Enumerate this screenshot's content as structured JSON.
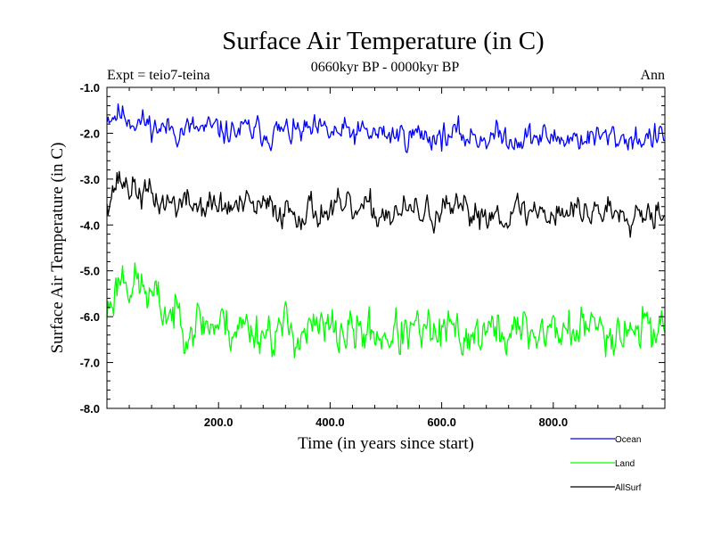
{
  "chart_data": {
    "type": "line",
    "title": "Surface Air Temperature (in C)",
    "subtitle": "0660kyr BP - 0000kyr BP",
    "left_label": "Expt = teio7-teina",
    "right_label": "Ann",
    "xlabel": "Time (in years since start)",
    "ylabel": "Surface Air Temperature (in C)",
    "xlim": [
      0,
      1000
    ],
    "ylim": [
      -8.0,
      -1.0
    ],
    "x_ticks": [
      200,
      400,
      600,
      800
    ],
    "x_tick_labels": [
      "200.0",
      "400.0",
      "600.0",
      "800.0"
    ],
    "y_ticks": [
      -1,
      -2,
      -3,
      -4,
      -5,
      -6,
      -7,
      -8
    ],
    "y_tick_labels": [
      "-1.0",
      "-2.0",
      "-3.0",
      "-4.0",
      "-5.0",
      "-6.0",
      "-7.0",
      "-8.0"
    ],
    "grid": false,
    "legend_position": "bottom-right",
    "sampling_step_years": 2,
    "series": [
      {
        "name": "Ocean",
        "color": "#0000ff",
        "trend": [
          [
            0,
            -1.6
          ],
          [
            20,
            -1.55
          ],
          [
            60,
            -1.75
          ],
          [
            100,
            -1.9
          ],
          [
            200,
            -1.95
          ],
          [
            400,
            -2.0
          ],
          [
            600,
            -2.05
          ],
          [
            800,
            -2.1
          ],
          [
            1000,
            -2.1
          ]
        ],
        "noise_amplitude": 0.13,
        "seed": 11
      },
      {
        "name": "Land",
        "color": "#00ff00",
        "trend": [
          [
            0,
            -5.9
          ],
          [
            25,
            -5.05
          ],
          [
            60,
            -5.35
          ],
          [
            100,
            -5.85
          ],
          [
            150,
            -6.1
          ],
          [
            300,
            -6.3
          ],
          [
            600,
            -6.4
          ],
          [
            800,
            -6.3
          ],
          [
            1000,
            -6.2
          ]
        ],
        "noise_amplitude": 0.22,
        "seed": 23
      },
      {
        "name": "AllSurf",
        "color": "#000000",
        "trend": [
          [
            0,
            -3.4
          ],
          [
            20,
            -3.0
          ],
          [
            60,
            -3.3
          ],
          [
            100,
            -3.5
          ],
          [
            200,
            -3.6
          ],
          [
            400,
            -3.7
          ],
          [
            600,
            -3.75
          ],
          [
            800,
            -3.7
          ],
          [
            1000,
            -3.65
          ]
        ],
        "noise_amplitude": 0.15,
        "seed": 37
      }
    ]
  }
}
